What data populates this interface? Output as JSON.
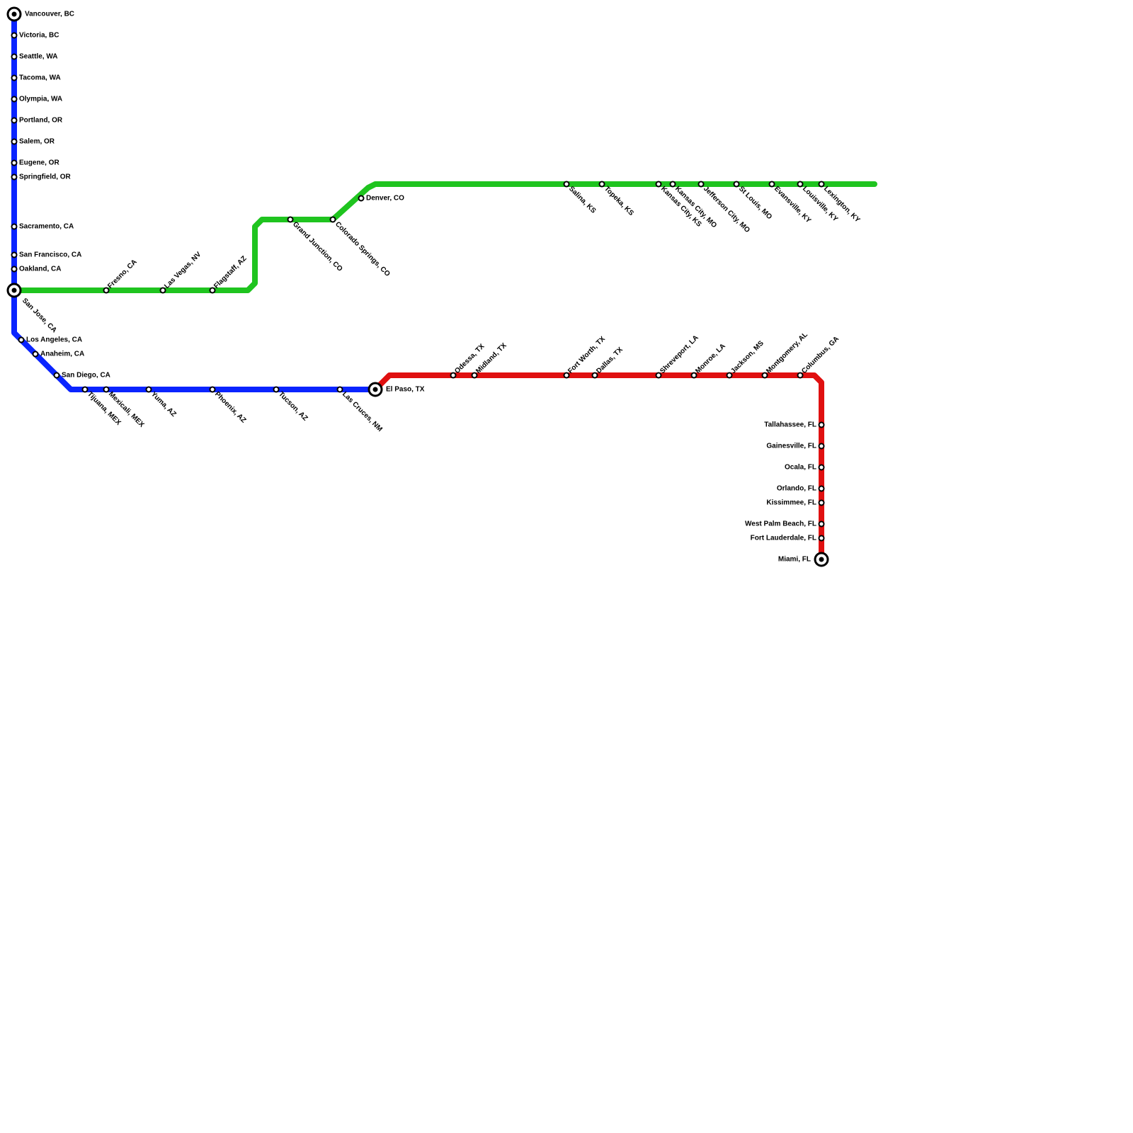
{
  "stations": [
    "Vancouver, BC",
    "Victoria, BC",
    "Seattle, WA",
    "Tacoma, WA",
    "Olympia, WA",
    "Portland, OR",
    "Salem, OR",
    "Eugene, OR",
    "Springfield, OR",
    "Sacramento, CA",
    "San Francisco, CA",
    "Oakland, CA",
    "San Jose, CA",
    "Los Angeles, CA",
    "Anaheim, CA",
    "San Diego, CA",
    "Tijuana, MEX",
    "Mexicali, MEX",
    "Yuma, AZ",
    "Phoenix, AZ",
    "Tucson, AZ",
    "Las Cruces, NM",
    "El Paso, TX",
    "Fresno, CA",
    "Las Vegas, NV",
    "Flagstaff, AZ",
    "Grand Junction, CO",
    "Colorado Springs, CO",
    "Denver, CO",
    "Salina, KS",
    "Topeka, KS",
    "Kansas City, KS",
    "Kansas City, MO",
    "Jefferson City, MO",
    "St Louis, MO",
    "Evansville, KY",
    "Louisville, KY",
    "Lexington, KY",
    "Odessa, TX",
    "Midland, TX",
    "Fort Worth, TX",
    "Dallas, TX",
    "Shreveport, LA",
    "Monroe, LA",
    "Jackson, MS",
    "Montgomery, AL",
    "Columbus, GA",
    "Tallahassee, FL",
    "Gainesville, FL",
    "Ocala, FL",
    "Orlando, FL",
    "Kissimmee, FL",
    "West Palm Beach, FL",
    "Fort Lauderdale, FL",
    "Miami, FL"
  ]
}
